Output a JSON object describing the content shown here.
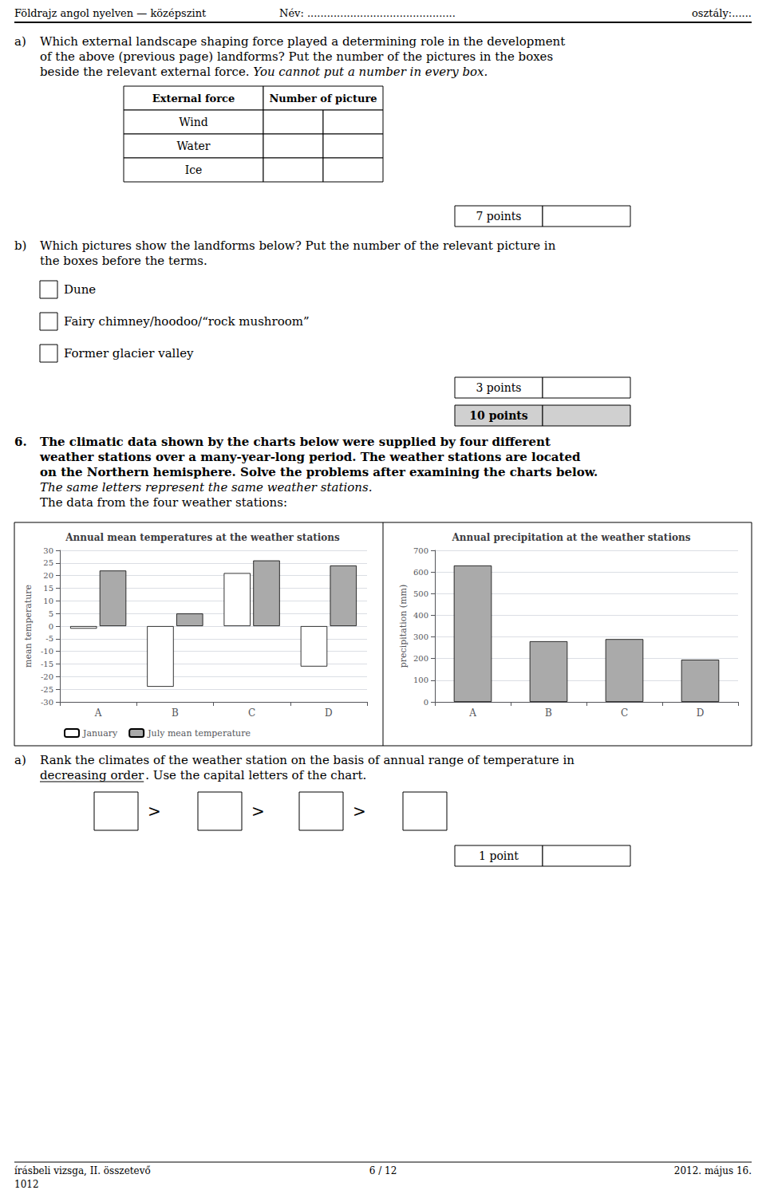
{
  "chart_data": [
    {
      "type": "bar",
      "title": "Annual mean temperatures at the weather stations",
      "categories": [
        "A",
        "B",
        "C",
        "D"
      ],
      "series": [
        {
          "name": "January",
          "color": "#ffffff",
          "values": [
            -1,
            -24,
            21,
            -16
          ]
        },
        {
          "name": "July mean temperature",
          "color": "#aaaaaa",
          "values": [
            22,
            5,
            26,
            24
          ]
        }
      ],
      "ylabel": "mean temperature",
      "ylim": [
        -30,
        30
      ],
      "yticks": [
        -30,
        -25,
        -20,
        -15,
        -10,
        -5,
        0,
        5,
        10,
        15,
        20,
        25,
        30
      ],
      "grid": true,
      "legend": "lower left",
      "annotations": [
        "Földrajz angol nyelven — középszint",
        "Név: .............................................",
        "osztály:......",
        "a)",
        "Which external landscape shaping force played a determining role in the development",
        "of the above (previous page) landforms? Put the number of the pictures in the boxes",
        "beside the relevant external force.",
        "You cannot put a number in every box.",
        "External force",
        "Number of picture",
        "Wind",
        "Water",
        "Ice",
        "7 points",
        "b)",
        "Which pictures show the landforms below? Put the number of the relevant picture in",
        "the boxes before the terms.",
        "Dune",
        "Fairy chimney/hoodoo/“rock mushroom”",
        "Former glacier valley",
        "3 points",
        "10 points",
        "6.",
        "The climatic data shown by the charts below were supplied by four different",
        "weather stations over a many-year-long period. The weather stations are located",
        "on the Northern hemisphere. Solve the problems after examining the charts below.",
        "The same letters represent the same weather stations.",
        "The data from the four weather stations:",
        "a)",
        "Rank the climates of the weather station on the basis of annual range of temperature in",
        "decreasing order",
        ". Use the capital letters of the chart.",
        ">",
        ">",
        ">",
        "1 point",
        "írásbeli vizsga, II. összetevő",
        "6 / 12",
        "2012. május 16.",
        "1012"
      ]
    },
    {
      "type": "bar",
      "title": "Annual precipitation at the weather stations",
      "categories": [
        "A",
        "B",
        "C",
        "D"
      ],
      "values": [
        630,
        280,
        290,
        195
      ],
      "color": "#aaaaaa",
      "ylabel": "precipitation (mm)",
      "ylim": [
        0,
        700
      ],
      "yticks": [
        0,
        100,
        200,
        300,
        400,
        500,
        600,
        700
      ],
      "grid": true
    }
  ]
}
